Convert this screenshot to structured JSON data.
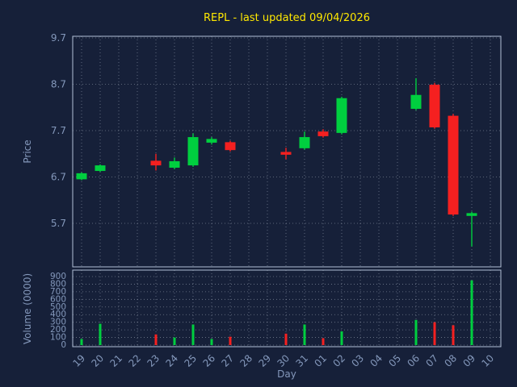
{
  "chart_data": {
    "type": "candlestick",
    "title": "REPL - last updated 09/04/2026",
    "xlabel": "Day",
    "ylabel_price": "Price",
    "ylabel_volume": "Volume (0000)",
    "grid": true,
    "legend": "none",
    "price_ticks": [
      9.7,
      8.7,
      7.7,
      6.7,
      5.7
    ],
    "price_ylim": [
      4.8,
      9.75
    ],
    "volume_ticks": [
      900,
      800,
      700,
      600,
      500,
      400,
      300,
      200,
      100,
      0
    ],
    "volume_ylim": [
      0,
      1000
    ],
    "categories": [
      "19",
      "20",
      "21",
      "22",
      "23",
      "24",
      "25",
      "26",
      "27",
      "28",
      "29",
      "30",
      "31",
      "01",
      "02",
      "03",
      "04",
      "05",
      "06",
      "07",
      "08",
      "09",
      "10"
    ],
    "colors": {
      "background": "#162039",
      "title": "#ffe800",
      "labels": "#8498bb",
      "grid": "#cdd6e4",
      "spine": "#b2c0d6",
      "up": "#00cf3f",
      "down": "#f52020"
    },
    "candles": [
      {
        "day": "19",
        "open": 6.65,
        "high": 6.8,
        "low": 6.63,
        "close": 6.78,
        "volume": 80
      },
      {
        "day": "20",
        "open": 6.83,
        "high": 6.97,
        "low": 6.81,
        "close": 6.95,
        "volume": 280
      },
      {
        "day": "23",
        "open": 7.05,
        "high": 7.2,
        "low": 6.84,
        "close": 6.95,
        "volume": 140
      },
      {
        "day": "24",
        "open": 6.9,
        "high": 7.12,
        "low": 6.87,
        "close": 7.04,
        "volume": 100
      },
      {
        "day": "25",
        "open": 6.95,
        "high": 7.64,
        "low": 6.92,
        "close": 7.56,
        "volume": 270
      },
      {
        "day": "26",
        "open": 7.44,
        "high": 7.56,
        "low": 7.4,
        "close": 7.52,
        "volume": 80
      },
      {
        "day": "27",
        "open": 7.45,
        "high": 7.48,
        "low": 7.25,
        "close": 7.28,
        "volume": 110
      },
      {
        "day": "30",
        "open": 7.24,
        "high": 7.33,
        "low": 7.08,
        "close": 7.18,
        "volume": 150
      },
      {
        "day": "31",
        "open": 7.32,
        "high": 7.68,
        "low": 7.29,
        "close": 7.56,
        "volume": 270
      },
      {
        "day": "01",
        "open": 7.68,
        "high": 7.73,
        "low": 7.55,
        "close": 7.58,
        "volume": 90
      },
      {
        "day": "02",
        "open": 7.65,
        "high": 8.43,
        "low": 7.62,
        "close": 8.4,
        "volume": 180
      },
      {
        "day": "06",
        "open": 8.17,
        "high": 8.83,
        "low": 8.14,
        "close": 8.47,
        "volume": 330
      },
      {
        "day": "07",
        "open": 8.69,
        "high": 8.73,
        "low": 7.74,
        "close": 7.77,
        "volume": 300
      },
      {
        "day": "08",
        "open": 8.02,
        "high": 8.06,
        "low": 5.86,
        "close": 5.89,
        "volume": 260
      },
      {
        "day": "09",
        "open": 5.86,
        "high": 5.95,
        "low": 5.2,
        "close": 5.92,
        "volume": 850
      }
    ]
  }
}
